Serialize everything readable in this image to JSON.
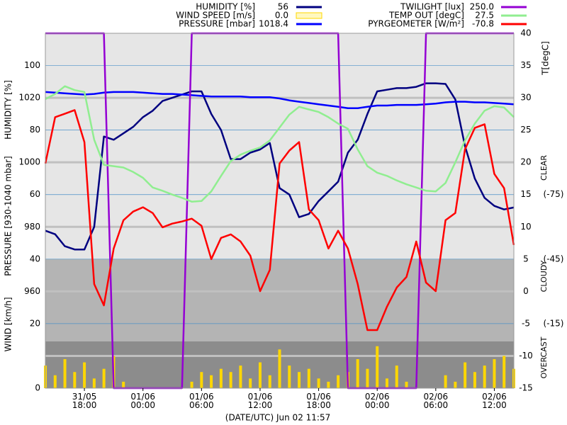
{
  "chart_data": {
    "type": "line",
    "xlabel": "(DATE/UTC) Jun 02 11:57",
    "x": [
      "31/05 14:00",
      "31/05 15:00",
      "31/05 16:00",
      "31/05 17:00",
      "31/05 18:00",
      "31/05 19:00",
      "31/05 20:00",
      "31/05 21:00",
      "31/05 22:00",
      "31/05 23:00",
      "01/06 00:00",
      "01/06 01:00",
      "01/06 02:00",
      "01/06 03:00",
      "01/06 04:00",
      "01/06 05:00",
      "01/06 06:00",
      "01/06 07:00",
      "01/06 08:00",
      "01/06 09:00",
      "01/06 10:00",
      "01/06 11:00",
      "01/06 12:00",
      "01/06 13:00",
      "01/06 14:00",
      "01/06 15:00",
      "01/06 16:00",
      "01/06 17:00",
      "01/06 18:00",
      "01/06 19:00",
      "01/06 20:00",
      "01/06 21:00",
      "01/06 22:00",
      "01/06 23:00",
      "02/06 00:00",
      "02/06 01:00",
      "02/06 02:00",
      "02/06 03:00",
      "02/06 04:00",
      "02/06 05:00",
      "02/06 06:00",
      "02/06 07:00",
      "02/06 08:00",
      "02/06 09:00",
      "02/06 10:00",
      "02/06 11:00",
      "02/06 12:00",
      "02/06 13:00",
      "02/06 14:00"
    ],
    "xticks": [
      "31/05 18:00",
      "01/06 00:00",
      "01/06 06:00",
      "01/06 12:00",
      "01/06 18:00",
      "02/06 00:00",
      "02/06 06:00",
      "02/06 12:00"
    ],
    "axes": {
      "humidity": {
        "label": "HUMIDITY [%]",
        "ylim": [
          0,
          110
        ],
        "yticks": [
          60,
          80,
          100
        ]
      },
      "pressure": {
        "label": "PRESSURE [930-1040 mbar]",
        "ylim": [
          930,
          1040
        ],
        "yticks": [
          960,
          980,
          1000,
          1020
        ]
      },
      "wind": {
        "label": "WIND [km/h]",
        "ylim": [
          0,
          110
        ],
        "yticks": [
          0,
          20,
          40
        ]
      },
      "temp": {
        "label": "T[degC]",
        "ylim": [
          -15,
          40
        ],
        "yticks": [
          -15,
          -10,
          -5,
          0,
          5,
          10,
          15,
          20,
          25,
          30,
          35,
          40
        ]
      },
      "twilight": {
        "ylim": [
          0,
          250
        ]
      },
      "pyrgeometer": {
        "ylim": [
          15,
          -150
        ],
        "yticks": [
          {
            "value": -75,
            "label": "(-75)"
          },
          {
            "value": -45,
            "label": "(-45)"
          },
          {
            "value": -15,
            "label": "(-15)"
          }
        ],
        "zones": [
          "CLEAR",
          "CLOUDY",
          "OVERCAST"
        ]
      }
    },
    "series": [
      {
        "name": "HUMIDITY [%]",
        "type": "line",
        "axis": "humidity",
        "color": "#000080",
        "current": 56,
        "values": [
          48.8,
          47.7,
          44,
          43,
          43,
          50,
          78,
          77,
          79,
          81,
          84,
          86,
          89,
          90,
          91,
          92,
          92,
          85,
          80,
          71,
          71,
          73,
          74,
          76,
          62,
          60,
          53,
          54,
          58,
          61,
          64,
          73,
          77,
          85,
          92,
          92.5,
          93,
          93,
          93.4,
          94.5,
          94.5,
          94.3,
          89.5,
          75,
          65,
          59,
          56.5,
          55.4,
          56
        ]
      },
      {
        "name": "WIND SPEED [m/s]",
        "type": "bar",
        "axis": "wind",
        "color": "#ffd700",
        "current": {
          "value": 0,
          "label": "0.0"
        },
        "values": [
          7,
          4,
          9,
          5,
          8,
          3,
          6,
          10,
          2,
          0,
          0,
          0,
          0,
          0,
          0,
          2,
          5,
          4,
          6,
          5,
          7,
          3,
          8,
          4,
          12,
          7,
          5,
          6,
          3,
          2,
          4,
          5,
          9,
          6,
          13,
          3,
          7,
          2,
          0,
          0,
          0,
          4,
          2,
          8,
          5,
          7,
          9,
          10,
          6
        ]
      },
      {
        "name": "PRESSURE [mbar]",
        "type": "line",
        "axis": "pressure",
        "color": "#0000ff",
        "current": 1018.4,
        "values": [
          1021.8,
          1021.6,
          1021.4,
          1021.2,
          1021.0,
          1021.2,
          1021.6,
          1021.8,
          1021.8,
          1021.8,
          1021.6,
          1021.4,
          1021.2,
          1021.2,
          1021.0,
          1020.8,
          1020.6,
          1020.4,
          1020.4,
          1020.4,
          1020.4,
          1020.2,
          1020.2,
          1020.2,
          1019.8,
          1019.2,
          1018.8,
          1018.4,
          1018.0,
          1017.6,
          1017.2,
          1016.8,
          1016.8,
          1017.2,
          1017.6,
          1017.6,
          1017.8,
          1017.8,
          1017.8,
          1018.0,
          1018.2,
          1018.6,
          1018.8,
          1018.8,
          1018.6,
          1018.6,
          1018.4,
          1018.2,
          1018.0
        ]
      },
      {
        "name": "TWILIGHT [lux]",
        "type": "line",
        "axis": "twilight",
        "color": "#9400d3",
        "current": {
          "value": 250,
          "label": "250.0"
        },
        "values": [
          250,
          250,
          250,
          250,
          250,
          250,
          250,
          0,
          0,
          0,
          0,
          0,
          0,
          0,
          0,
          250,
          250,
          250,
          250,
          250,
          250,
          250,
          250,
          250,
          250,
          250,
          250,
          250,
          250,
          250,
          250,
          0,
          0,
          0,
          0,
          0,
          0,
          0,
          0,
          250,
          250,
          250,
          250,
          250,
          250,
          250,
          250,
          250,
          250
        ]
      },
      {
        "name": "TEMP OUT [degC]",
        "type": "line",
        "axis": "temp",
        "color": "#90ee90",
        "current": 27.5,
        "values": [
          29.8,
          30.6,
          31.8,
          31.2,
          30.9,
          23.5,
          19.6,
          19.4,
          19.2,
          18.5,
          17.6,
          16.1,
          15.6,
          15.0,
          14.5,
          13.9,
          14.0,
          15.5,
          17.9,
          20.2,
          21.2,
          21.8,
          22.3,
          23.4,
          25.4,
          27.4,
          28.6,
          28.2,
          27.8,
          27.0,
          26.0,
          25.2,
          22.0,
          19.4,
          18.4,
          17.9,
          17.2,
          16.6,
          16.1,
          15.6,
          15.5,
          16.8,
          20.0,
          23.4,
          26.0,
          28.0,
          28.7,
          28.5,
          27.0
        ]
      },
      {
        "name": "PYRGEOMETER [W/m²]",
        "type": "line",
        "axis": "pyrgeometer",
        "color": "#ff0000",
        "current": -70.8,
        "values": [
          -89.5,
          -111.0,
          -112.6,
          -114.3,
          -99.4,
          -33.4,
          -23.5,
          -49.9,
          -63.1,
          -67.1,
          -69.1,
          -66.4,
          -59.8,
          -61.5,
          -62.5,
          -63.8,
          -60.5,
          -45.0,
          -54.9,
          -56.5,
          -53.2,
          -46.6,
          -30.1,
          -40.0,
          -89.5,
          -95.5,
          -99.4,
          -68.1,
          -63.1,
          -49.9,
          -58.2,
          -49.9,
          -33.4,
          -12.0,
          -12.0,
          -22.9,
          -31.8,
          -36.7,
          -53.2,
          -34.1,
          -30.1,
          -63.1,
          -66.4,
          -96.1,
          -106.0,
          -107.7,
          -84.6,
          -78.0,
          -51.6
        ]
      }
    ]
  }
}
